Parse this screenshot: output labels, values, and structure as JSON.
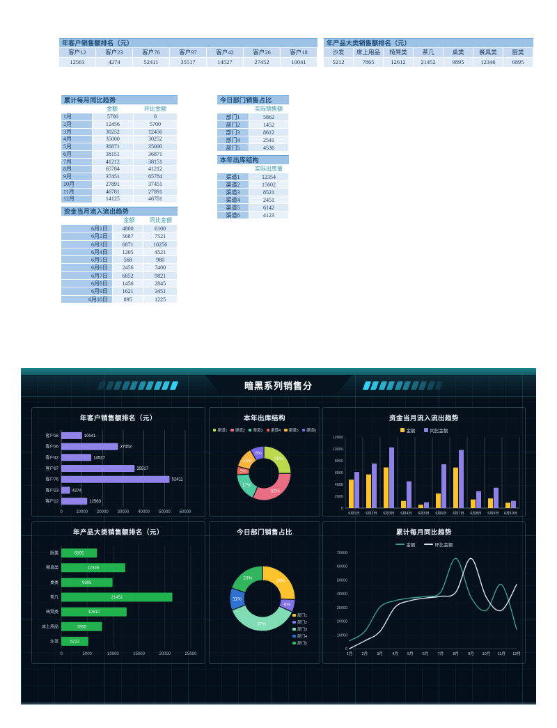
{
  "sheet": {
    "customer_ranking": {
      "title": "年客户销售额排名（元）",
      "columns": [
        "客户12",
        "客户23",
        "客户76",
        "客户97",
        "客户42",
        "客户26",
        "客户18"
      ],
      "values": [
        "12563",
        "4274",
        "52411",
        "35517",
        "14527",
        "27452",
        "10041"
      ]
    },
    "product_ranking": {
      "title": "年产品大类销售额排名（元）",
      "columns": [
        "沙发",
        "床上用品",
        "椅凳类",
        "茶几",
        "桌类",
        "餐具类",
        "厨类"
      ],
      "values": [
        "5212",
        "7865",
        "12612",
        "21452",
        "9895",
        "12346",
        "6895"
      ]
    },
    "monthly_trend": {
      "title": "累计每月同比趋势",
      "col_headers": [
        "金额",
        "环比金额"
      ],
      "rows": [
        [
          "1月",
          "5700",
          "0"
        ],
        [
          "2月",
          "12456",
          "5700"
        ],
        [
          "3月",
          "30252",
          "12456"
        ],
        [
          "4月",
          "35000",
          "30252"
        ],
        [
          "5月",
          "36871",
          "35000"
        ],
        [
          "6月",
          "38151",
          "36871"
        ],
        [
          "7月",
          "41212",
          "38151"
        ],
        [
          "8月",
          "65784",
          "41212"
        ],
        [
          "9月",
          "37451",
          "65784"
        ],
        [
          "10月",
          "27891",
          "37451"
        ],
        [
          "11月",
          "46781",
          "27891"
        ],
        [
          "12月",
          "14125",
          "46781"
        ]
      ]
    },
    "dept_share": {
      "title": "今日部门销售占比",
      "col_header": "实际销售额",
      "rows": [
        [
          "部门1",
          "5862"
        ],
        [
          "部门2",
          "1452"
        ],
        [
          "部门3",
          "8612"
        ],
        [
          "部门4",
          "2541"
        ],
        [
          "部门5",
          "4536"
        ]
      ]
    },
    "outbound": {
      "title": "本年出库结构",
      "col_header": "实际出库量",
      "rows": [
        [
          "渠道1",
          "12354"
        ],
        [
          "渠道2",
          "15602"
        ],
        [
          "渠道3",
          "8521"
        ],
        [
          "渠道4",
          "2451"
        ],
        [
          "渠道5",
          "6142"
        ],
        [
          "渠道6",
          "4123"
        ]
      ]
    },
    "cash_flow": {
      "title": "资金当月流入流出趋势",
      "col_headers": [
        "金额",
        "同比金额"
      ],
      "rows": [
        [
          "6月1日",
          "4800",
          "6100"
        ],
        [
          "6月2日",
          "5687",
          "7521"
        ],
        [
          "6月3日",
          "6871",
          "10256"
        ],
        [
          "6月4日",
          "1205",
          "4521"
        ],
        [
          "6月5日",
          "568",
          "980"
        ],
        [
          "6月6日",
          "2456",
          "7400"
        ],
        [
          "6月7日",
          "6852",
          "9821"
        ],
        [
          "6月8日",
          "1456",
          "2845"
        ],
        [
          "6月9日",
          "1621",
          "3451"
        ],
        [
          "6月10日",
          "895",
          "1225"
        ]
      ]
    }
  },
  "dashboard": {
    "title": "暗黑系列销售分",
    "accent_color": "#35d2f5",
    "background_color": "#050f1a"
  },
  "chart_data": [
    {
      "type": "bar",
      "orientation": "horizontal",
      "title": "年客户销售额排名（元）",
      "categories_top_to_bottom": [
        "客户18",
        "客户26",
        "客户42",
        "客户97",
        "客户76",
        "客户23",
        "客户12"
      ],
      "values": [
        10041,
        27452,
        14527,
        35517,
        52411,
        4274,
        12563
      ],
      "value_labels": [
        "10041",
        "27452",
        "14527",
        "35517",
        "52411",
        "4274",
        "12563"
      ],
      "xlim": [
        0,
        60000
      ],
      "xticks": [
        0,
        10000,
        20000,
        30000,
        40000,
        50000,
        60000
      ],
      "bar_color": "#9183e8",
      "label_position": "outside",
      "grid": true
    },
    {
      "type": "pie",
      "subtype": "donut",
      "title": "本年出库结构",
      "legend_position": "top",
      "series": [
        {
          "name": "渠道1",
          "value": 12354,
          "pct": "25%",
          "color": "#bcd94c"
        },
        {
          "name": "渠道2",
          "value": 15602,
          "pct": "32%",
          "color": "#e96e84"
        },
        {
          "name": "渠道3",
          "value": 8521,
          "pct": "17%",
          "color": "#4ecba0"
        },
        {
          "name": "渠道4",
          "value": 2451,
          "pct": "5%",
          "color": "#ec6553"
        },
        {
          "name": "渠道5",
          "value": 6142,
          "pct": "13%",
          "color": "#fcb53e"
        },
        {
          "name": "渠道6",
          "value": 4123,
          "pct": "8%",
          "color": "#7968ea"
        }
      ]
    },
    {
      "type": "bar",
      "orientation": "vertical",
      "title": "资金当月流入流出趋势",
      "legend_position": "top",
      "categories": [
        "6月1日",
        "6月2日",
        "6月3日",
        "6月4日",
        "6月5日",
        "6月6日",
        "6月7日",
        "6月8日",
        "6月9日",
        "6月10日"
      ],
      "series": [
        {
          "name": "金额",
          "color": "#fcc32d",
          "values": [
            4800,
            5687,
            6871,
            1205,
            568,
            2456,
            6852,
            1456,
            1621,
            895
          ]
        },
        {
          "name": "同比金额",
          "color": "#8e80e4",
          "values": [
            6100,
            7521,
            10256,
            4521,
            980,
            7400,
            9821,
            2845,
            3451,
            1225
          ]
        }
      ],
      "ylim": [
        0,
        12000
      ],
      "yticks": [
        0,
        2000,
        4000,
        6000,
        8000,
        10000,
        12000
      ],
      "grid": true
    },
    {
      "type": "bar",
      "orientation": "horizontal",
      "title": "年产品大类销售额排名（元）",
      "categories_top_to_bottom": [
        "厨类",
        "餐具类",
        "桌类",
        "茶几",
        "椅凳类",
        "床上用品",
        "沙发"
      ],
      "values": [
        6895,
        12346,
        9895,
        21452,
        12612,
        7865,
        5212
      ],
      "value_labels": [
        "6895",
        "12346",
        "9895",
        "21452",
        "12612",
        "7865",
        "5212"
      ],
      "xlim": [
        0,
        25000
      ],
      "xticks": [
        0,
        5000,
        10000,
        15000,
        20000,
        25000
      ],
      "bar_color": "#21b14d",
      "label_position": "inside",
      "grid": true
    },
    {
      "type": "pie",
      "subtype": "donut",
      "title": "今日部门销售占比",
      "legend_position": "bottom-right",
      "series": [
        {
          "name": "部门1",
          "value": 5862,
          "pct": "26%",
          "color": "#fdc42e"
        },
        {
          "name": "部门2",
          "value": 1452,
          "pct": "6%",
          "color": "#8272e6"
        },
        {
          "name": "部门3",
          "value": 8612,
          "pct": "37%",
          "color": "#80dcb2"
        },
        {
          "name": "部门4",
          "value": 2541,
          "pct": "11%",
          "color": "#2e71ce"
        },
        {
          "name": "部门5",
          "value": 4536,
          "pct": "20%",
          "color": "#31b55e"
        }
      ]
    },
    {
      "type": "line",
      "smooth": true,
      "title": "累计每月同比趋势",
      "legend_position": "top",
      "categories": [
        "1月",
        "2月",
        "3月",
        "4月",
        "5月",
        "6月",
        "7月",
        "8月",
        "9月",
        "10月",
        "11月",
        "12月"
      ],
      "series": [
        {
          "name": "金额",
          "color": "#3aa089",
          "values": [
            5700,
            12456,
            30252,
            35000,
            36871,
            38151,
            41212,
            65784,
            37451,
            27891,
            46781,
            14125
          ]
        },
        {
          "name": "环比金额",
          "color": "#d9e3ec",
          "values": [
            0,
            5700,
            12456,
            30252,
            35000,
            36871,
            38151,
            41212,
            65784,
            37451,
            27891,
            46781
          ]
        }
      ],
      "ylim": [
        0,
        70000
      ],
      "yticks": [
        0,
        10000,
        20000,
        30000,
        40000,
        50000,
        60000,
        70000
      ],
      "grid": false
    }
  ]
}
